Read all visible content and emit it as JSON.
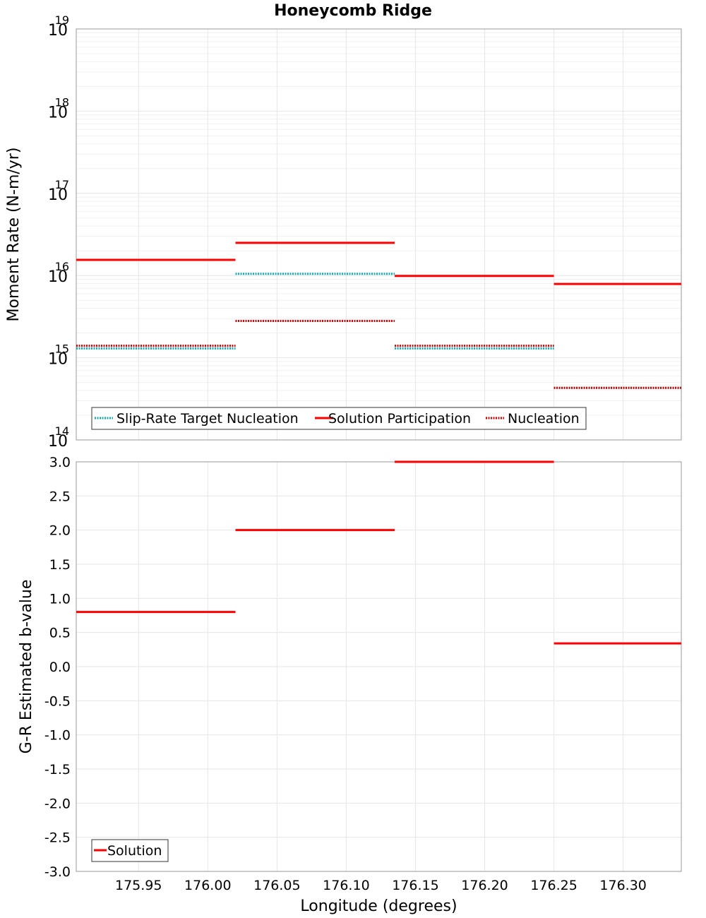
{
  "title": "Honeycomb Ridge",
  "colors": {
    "red": "#ff0000",
    "cyan": "#17a9b3",
    "dark_red": "#cc0000",
    "grid": "#e6e6e6",
    "minor_grid": "#f0f0f0",
    "frame": "#999999"
  },
  "chart_data": [
    {
      "type": "line",
      "ylabel": "Moment Rate (N-m/yr)",
      "yscale": "log",
      "ylim": [
        100000000000000.0,
        1e+19
      ],
      "xlim": [
        175.905,
        176.342
      ],
      "y_ticks": [
        {
          "base": "10",
          "exp": "14"
        },
        {
          "base": "10",
          "exp": "15"
        },
        {
          "base": "10",
          "exp": "16"
        },
        {
          "base": "10",
          "exp": "17"
        },
        {
          "base": "10",
          "exp": "18"
        },
        {
          "base": "10",
          "exp": "19"
        }
      ],
      "legend_position": "bottom-left",
      "series": [
        {
          "name": "Slip-Rate Target Nucleation",
          "style": "dotted",
          "color": "#17a9b3",
          "segments": [
            {
              "x": [
                175.905,
                176.02
              ],
              "y": 1300000000000000.0
            },
            {
              "x": [
                176.02,
                176.135
              ],
              "y": 1.05e+16
            },
            {
              "x": [
                176.135,
                176.25
              ],
              "y": 1300000000000000.0
            },
            {
              "x": [
                176.25,
                176.342
              ],
              "y": 430000000000000.0
            }
          ]
        },
        {
          "name": "Solution Participation",
          "style": "solid",
          "color": "#ff0000",
          "segments": [
            {
              "x": [
                175.905,
                176.02
              ],
              "y": 1.55e+16
            },
            {
              "x": [
                176.02,
                176.135
              ],
              "y": 2.5e+16
            },
            {
              "x": [
                176.135,
                176.25
              ],
              "y": 9900000000000000.0
            },
            {
              "x": [
                176.25,
                176.342
              ],
              "y": 7900000000000000.0
            }
          ]
        },
        {
          "name": "Nucleation",
          "style": "dotted",
          "color": "#cc0000",
          "segments": [
            {
              "x": [
                175.905,
                176.02
              ],
              "y": 1400000000000000.0
            },
            {
              "x": [
                176.02,
                176.135
              ],
              "y": 2800000000000000.0
            },
            {
              "x": [
                176.135,
                176.25
              ],
              "y": 1400000000000000.0
            },
            {
              "x": [
                176.25,
                176.342
              ],
              "y": 430000000000000.0
            }
          ]
        }
      ]
    },
    {
      "type": "line",
      "ylabel": "G-R Estimated b-value",
      "xlabel": "Longitude (degrees)",
      "ylim": [
        -3.0,
        3.0
      ],
      "xlim": [
        175.905,
        176.342
      ],
      "y_ticks": [
        "3.0",
        "2.5",
        "2.0",
        "1.5",
        "1.0",
        "0.5",
        "0.0",
        "-0.5",
        "-1.0",
        "-1.5",
        "-2.0",
        "-2.5",
        "-3.0"
      ],
      "x_ticks": [
        "175.95",
        "176.00",
        "176.05",
        "176.10",
        "176.15",
        "176.20",
        "176.25",
        "176.30"
      ],
      "legend_position": "bottom-left",
      "series": [
        {
          "name": "Solution",
          "style": "solid",
          "color": "#ff0000",
          "segments": [
            {
              "x": [
                175.905,
                176.02
              ],
              "y": 0.8
            },
            {
              "x": [
                176.02,
                176.135
              ],
              "y": 2.0
            },
            {
              "x": [
                176.135,
                176.25
              ],
              "y": 3.0
            },
            {
              "x": [
                176.25,
                176.342
              ],
              "y": 0.34
            }
          ]
        }
      ]
    }
  ]
}
